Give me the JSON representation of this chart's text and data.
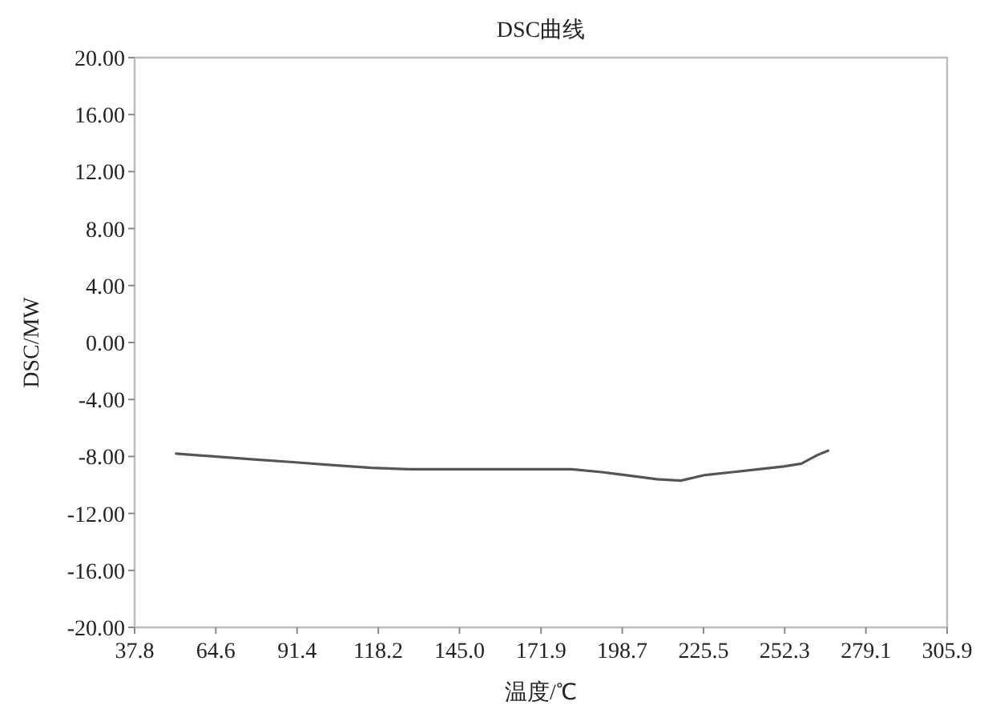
{
  "chart_data": {
    "type": "line",
    "title": "DSC曲线",
    "xlabel": "温度/℃",
    "ylabel": "DSC/MW",
    "xlim": [
      37.8,
      305.9
    ],
    "xticks": [
      37.8,
      64.6,
      91.4,
      118.2,
      {
        "value": 145,
        "label": "145.0"
      },
      171.9,
      198.7,
      225.5,
      252.3,
      279.1,
      305.9
    ],
    "ylim": [
      -20,
      20
    ],
    "yticks": [
      {
        "value": -20,
        "label": "-20.00"
      },
      {
        "value": -16,
        "label": "-16.00"
      },
      {
        "value": -12,
        "label": "-12.00"
      },
      {
        "value": -8,
        "label": "-8.00"
      },
      {
        "value": -4,
        "label": "-4.00"
      },
      {
        "value": 0,
        "label": "0.00"
      },
      {
        "value": 4,
        "label": "4.00"
      },
      {
        "value": 8,
        "label": "8.00"
      },
      {
        "value": 12,
        "label": "12.00"
      },
      {
        "value": 16,
        "label": "16.00"
      },
      {
        "value": 20,
        "label": "20.00"
      }
    ],
    "grid": false,
    "marker": "none",
    "line_style": "solid",
    "series": [
      {
        "color": "#555555",
        "x": [
          51.5,
          64,
          76.2,
          90,
          102.7,
          116,
          129.1,
          145,
          164.3,
          182,
          192,
          199.6,
          210.2,
          218,
          226.1,
          235,
          243.7,
          252,
          257.8,
          263.1,
          266.6
        ],
        "values": [
          -7.8,
          -8.0,
          -8.2,
          -8.4,
          -8.6,
          -8.8,
          -8.9,
          -8.9,
          -8.9,
          -8.9,
          -9.1,
          -9.3,
          -9.6,
          -9.7,
          -9.3,
          -9.1,
          -8.9,
          -8.7,
          -8.5,
          -7.9,
          -7.6
        ]
      }
    ]
  }
}
